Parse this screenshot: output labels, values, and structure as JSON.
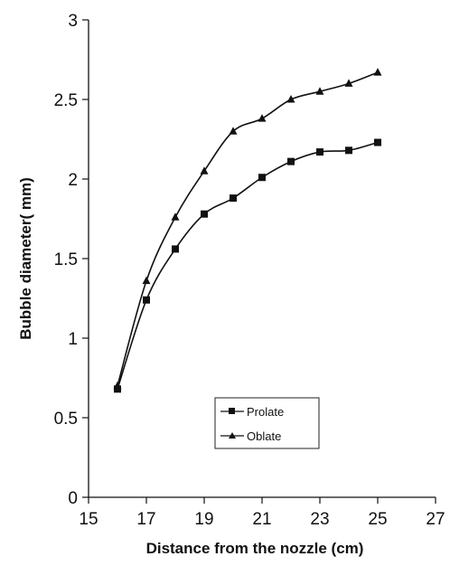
{
  "chart_data": {
    "type": "line",
    "title": "",
    "xlabel": "Distance from the nozzle (cm)",
    "ylabel": "Bubble diameter( mm)",
    "xlim": [
      15,
      27
    ],
    "ylim": [
      0,
      3
    ],
    "xticks": [
      15,
      17,
      19,
      21,
      23,
      25,
      27
    ],
    "yticks": [
      0,
      0.5,
      1,
      1.5,
      2,
      2.5,
      3
    ],
    "xtick_labels": [
      "15",
      "17",
      "19",
      "21",
      "23",
      "25",
      "27"
    ],
    "ytick_labels": [
      "0",
      "0.5",
      "1",
      "1.5",
      "2",
      "2.5",
      "3"
    ],
    "grid": false,
    "legend_position": "lower-center",
    "series": [
      {
        "name": "Prolate",
        "marker": "square",
        "color": "#111111",
        "x": [
          16,
          17,
          18,
          19,
          20,
          21,
          22,
          23,
          24,
          25
        ],
        "y": [
          0.68,
          1.24,
          1.56,
          1.78,
          1.88,
          2.01,
          2.11,
          2.17,
          2.18,
          2.23
        ]
      },
      {
        "name": "Oblate",
        "marker": "triangle",
        "color": "#111111",
        "x": [
          16,
          17,
          18,
          19,
          20,
          21,
          22,
          23,
          24,
          25
        ],
        "y": [
          0.7,
          1.36,
          1.76,
          2.05,
          2.3,
          2.38,
          2.5,
          2.55,
          2.6,
          2.67
        ]
      }
    ]
  }
}
